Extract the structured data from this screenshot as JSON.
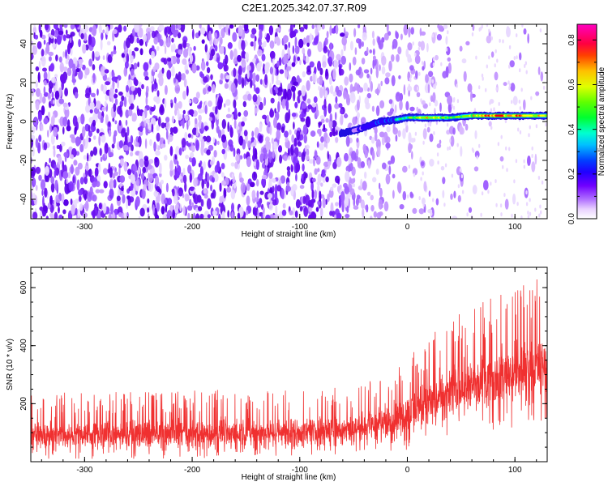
{
  "title": "C2E1.2025.342.07.37.R09",
  "chart_data": [
    {
      "type": "heatmap",
      "xlabel": "Height of straight line (km)",
      "ylabel": "Frequency (Hz)",
      "xlim": [
        -350,
        130
      ],
      "ylim": [
        -50,
        50
      ],
      "xticks": [
        -300,
        -200,
        -100,
        0,
        100
      ],
      "yticks": [
        -40,
        -20,
        0,
        20,
        40
      ],
      "colorbar": {
        "label": "Normalized spectral amplitude",
        "range": [
          0,
          0.87
        ],
        "ticks": [
          0.0,
          0.2,
          0.4,
          0.6,
          0.8
        ],
        "colors": [
          "#ffffff",
          "#f0e0ff",
          "#c080ff",
          "#8020ff",
          "#5000e0",
          "#0040ff",
          "#00ffff",
          "#00ff00",
          "#ffff00",
          "#ff8000",
          "#ff0000",
          "#ff00ff"
        ]
      },
      "signal_track": {
        "description_points_x": [
          -60,
          -45,
          -35,
          -25,
          -10,
          0,
          20,
          40,
          60,
          80,
          100,
          130
        ],
        "frequency_hz": [
          -6,
          -4,
          -2,
          0,
          1,
          2,
          2,
          2,
          3,
          3,
          3,
          3
        ],
        "amplitude": [
          0.15,
          0.3,
          0.4,
          0.45,
          0.5,
          0.55,
          0.75,
          0.6,
          0.7,
          0.85,
          0.8,
          0.7
        ]
      }
    },
    {
      "type": "line",
      "xlabel": "Height of straight line (km)",
      "ylabel": "SNR (10 * v/v)",
      "xlim": [
        -350,
        130
      ],
      "ylim": [
        0,
        670
      ],
      "xticks": [
        -300,
        -200,
        -100,
        0,
        100
      ],
      "yticks": [
        200,
        400,
        600
      ],
      "series": [
        {
          "name": "SNR",
          "color": "#f03030",
          "x": [
            -350,
            -300,
            -250,
            -200,
            -150,
            -100,
            -50,
            -25,
            0,
            25,
            50,
            75,
            100,
            125,
            130
          ],
          "mean": [
            95,
            95,
            95,
            98,
            100,
            105,
            115,
            135,
            165,
            210,
            255,
            285,
            310,
            330,
            335
          ],
          "upper": [
            240,
            240,
            240,
            245,
            250,
            250,
            260,
            300,
            360,
            450,
            520,
            560,
            610,
            650,
            670
          ],
          "lower": [
            10,
            10,
            10,
            12,
            15,
            20,
            25,
            30,
            40,
            60,
            80,
            100,
            120,
            140,
            150
          ]
        }
      ]
    }
  ]
}
